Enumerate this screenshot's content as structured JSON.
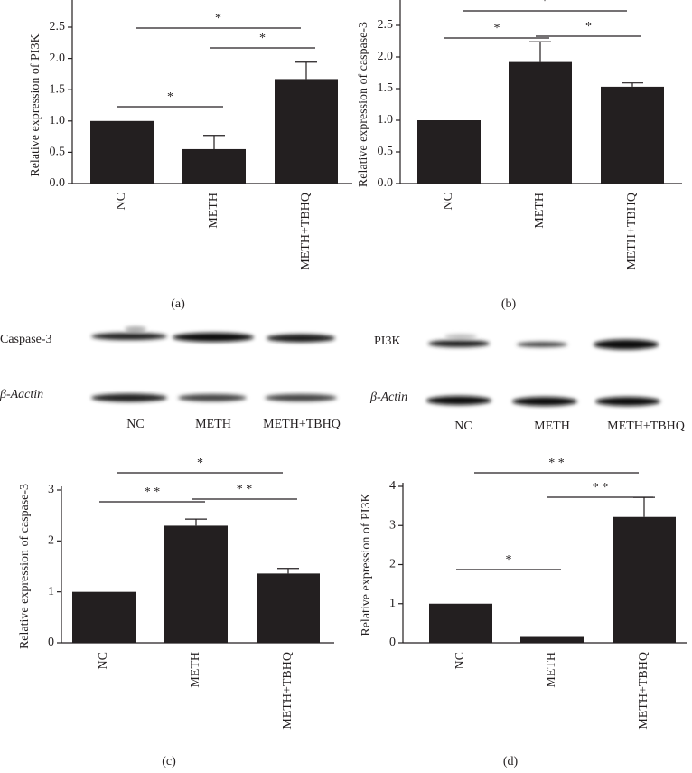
{
  "chart_data": [
    {
      "type": "bar",
      "caption": "(a)",
      "y_label": "Relative expression of PI3K",
      "color": "#231f20",
      "categories": [
        "NC",
        "METH",
        "METH+TBHQ"
      ],
      "values": [
        1.0,
        0.55,
        1.67
      ],
      "errors": [
        null,
        0.22,
        0.27
      ],
      "ylim": [
        0,
        2.5
      ],
      "yticks": [
        {
          "value": 0,
          "label": "0.0"
        },
        {
          "value": 0.5,
          "label": "0.5"
        },
        {
          "value": 1,
          "label": "1.0"
        },
        {
          "value": 1.5,
          "label": "1.5"
        },
        {
          "value": 2,
          "label": "2.0"
        },
        {
          "value": 2.5,
          "label": "2.5"
        }
      ],
      "annotations": [
        {
          "text": "*",
          "between": [
            "NC",
            "METH"
          ]
        },
        {
          "text": "*",
          "between": [
            "METH",
            "METH+TBHQ"
          ]
        },
        {
          "text": "*",
          "between": [
            "NC",
            "METH+TBHQ"
          ]
        }
      ]
    },
    {
      "type": "bar",
      "caption": "(b)",
      "y_label": "Relative expression of caspase-3",
      "color": "#231f20",
      "categories": [
        "NC",
        "METH",
        "METH+TBHQ"
      ],
      "values": [
        1.0,
        1.92,
        1.53
      ],
      "errors": [
        null,
        0.32,
        0.06
      ],
      "ylim": [
        0,
        2.5
      ],
      "yticks": [
        {
          "value": 0,
          "label": "0.0"
        },
        {
          "value": 0.5,
          "label": "0.5"
        },
        {
          "value": 1,
          "label": "1.0"
        },
        {
          "value": 1.5,
          "label": "1.5"
        },
        {
          "value": 2,
          "label": "2.0"
        },
        {
          "value": 2.5,
          "label": "2.5"
        }
      ],
      "annotations": [
        {
          "text": "*",
          "between": [
            "NC",
            "METH"
          ]
        },
        {
          "text": "*",
          "between": [
            "METH",
            "METH+TBHQ"
          ]
        },
        {
          "text": "*",
          "between": [
            "NC",
            "METH+TBHQ"
          ]
        }
      ]
    },
    {
      "type": "bar",
      "caption": "(c)",
      "y_label": "Relative expression of caspase-3",
      "color": "#231f20",
      "categories": [
        "NC",
        "METH",
        "METH+TBHQ"
      ],
      "values": [
        1.0,
        2.3,
        1.36
      ],
      "errors": [
        null,
        0.13,
        0.1
      ],
      "ylim": [
        0,
        3
      ],
      "yticks": [
        0,
        1,
        2,
        3
      ],
      "annotations": [
        {
          "text": "* *",
          "between": [
            "NC",
            "METH"
          ]
        },
        {
          "text": "* *",
          "between": [
            "METH",
            "METH+TBHQ"
          ]
        },
        {
          "text": "*",
          "between": [
            "NC",
            "METH+TBHQ"
          ]
        }
      ]
    },
    {
      "type": "bar",
      "caption": "(d)",
      "y_label": "Relative expression of PI3K",
      "color": "#231f20",
      "categories": [
        "NC",
        "METH",
        "METH+TBHQ"
      ],
      "values": [
        1.0,
        0.15,
        3.22
      ],
      "errors": [
        null,
        null,
        0.5
      ],
      "ylim": [
        0,
        4
      ],
      "yticks": [
        0,
        1,
        2,
        3,
        4
      ],
      "annotations": [
        {
          "text": "*",
          "between": [
            "NC",
            "METH"
          ]
        },
        {
          "text": "* *",
          "between": [
            "METH",
            "METH+TBHQ"
          ]
        },
        {
          "text": "* *",
          "between": [
            "NC",
            "METH+TBHQ"
          ]
        }
      ]
    }
  ],
  "blots": [
    {
      "rows": [
        "Caspase-3",
        "β-Aactin"
      ],
      "lanes": [
        "NC",
        "METH",
        "METH+TBHQ"
      ]
    },
    {
      "rows": [
        "PI3K",
        "β-Actin"
      ],
      "lanes": [
        "NC",
        "METH",
        "METH+TBHQ"
      ]
    }
  ]
}
